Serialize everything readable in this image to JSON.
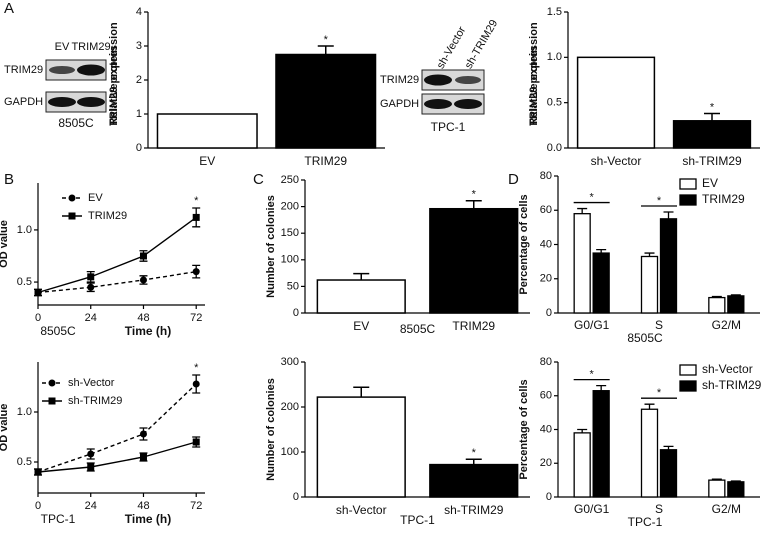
{
  "panel_labels": [
    "A",
    "B",
    "C",
    "D"
  ],
  "blots": [
    {
      "lanes": [
        "EV",
        "TRIM29"
      ],
      "rows": [
        "TRIM29",
        "GAPDH"
      ],
      "cell_line": "8505C"
    },
    {
      "lanes": [
        "sh-Vector",
        "sh-TRIM29"
      ],
      "rows": [
        "TRIM29",
        "GAPDH"
      ],
      "cell_line": "TPC-1"
    }
  ],
  "chart_data": [
    {
      "type": "bar",
      "ylabel": "TRIM29 protein\nRelative expression",
      "categories": [
        "EV",
        "TRIM29"
      ],
      "values": [
        1,
        2.75
      ],
      "errors": [
        0,
        0.25
      ],
      "colors": [
        "#ffffff",
        "#000000"
      ],
      "ylim": [
        0,
        4
      ],
      "yticks": [
        0,
        1,
        2,
        3,
        4
      ],
      "annotations": [
        "*"
      ]
    },
    {
      "type": "bar",
      "ylabel": "TRIM29 protein\nRelative expression",
      "categories": [
        "sh-Vector",
        "sh-TRIM29"
      ],
      "values": [
        1,
        0.3
      ],
      "errors": [
        0,
        0.08
      ],
      "colors": [
        "#ffffff",
        "#000000"
      ],
      "ylim": [
        0,
        1.5
      ],
      "yticks": [
        {
          "value": 0,
          "label": "0.0"
        },
        0.5,
        {
          "value": 1,
          "label": "1.0"
        },
        1.5
      ],
      "annotations": [
        "*"
      ]
    },
    {
      "type": "line",
      "ylabel": "OD value",
      "cell_line": "8505C",
      "xlabel": "Time (h)",
      "x": [
        0,
        24,
        48,
        72
      ],
      "xlim": [
        0,
        76
      ],
      "xticks": [
        0,
        24,
        48,
        72
      ],
      "ylim": [
        0.28,
        1.45
      ],
      "yticks": [
        0.5,
        {
          "value": 1,
          "label": "1.0"
        }
      ],
      "series": [
        {
          "name": "EV",
          "color": "#000000",
          "dashed": true,
          "marker": "circle",
          "values": [
            0.4,
            0.45,
            0.52,
            0.6
          ],
          "errors": [
            0.03,
            0.04,
            0.04,
            0.06
          ]
        },
        {
          "name": "TRIM29",
          "color": "#000000",
          "dashed": false,
          "marker": "square",
          "values": [
            0.4,
            0.55,
            0.75,
            1.12
          ],
          "errors": [
            0.03,
            0.05,
            0.05,
            0.09
          ]
        }
      ],
      "annotations": [
        "*"
      ]
    },
    {
      "type": "line",
      "ylabel": "OD value",
      "cell_line": "TPC-1",
      "xlabel": "Time (h)",
      "x": [
        0,
        24,
        48,
        72
      ],
      "xlim": [
        0,
        76
      ],
      "xticks": [
        0,
        24,
        48,
        72
      ],
      "ylim": [
        0.19,
        1.5
      ],
      "yticks": [
        0.5,
        {
          "value": 1,
          "label": "1.0"
        }
      ],
      "series": [
        {
          "name": "sh-Vector",
          "color": "#000000",
          "dashed": true,
          "marker": "circle",
          "values": [
            0.4,
            0.58,
            0.78,
            1.28
          ],
          "errors": [
            0.03,
            0.05,
            0.06,
            0.09
          ]
        },
        {
          "name": "sh-TRIM29",
          "color": "#000000",
          "dashed": false,
          "marker": "square",
          "values": [
            0.4,
            0.45,
            0.55,
            0.7
          ],
          "errors": [
            0.03,
            0.04,
            0.04,
            0.05
          ]
        }
      ],
      "annotations": [
        "*"
      ]
    },
    {
      "type": "bar",
      "ylabel": "Number of colonies",
      "xlabel": "8505C",
      "categories": [
        "EV",
        "TRIM29"
      ],
      "values": [
        62,
        196
      ],
      "errors": [
        12,
        15
      ],
      "colors": [
        "#ffffff",
        "#000000"
      ],
      "ylim": [
        0,
        250
      ],
      "yticks": [
        0,
        50,
        100,
        150,
        200,
        250
      ],
      "annotations": [
        "*"
      ]
    },
    {
      "type": "bar",
      "ylabel": "Number of colonies",
      "xlabel": "TPC-1",
      "categories": [
        "sh-Vector",
        "sh-TRIM29"
      ],
      "values": [
        222,
        72
      ],
      "errors": [
        22,
        12
      ],
      "colors": [
        "#ffffff",
        "#000000"
      ],
      "ylim": [
        0,
        300
      ],
      "yticks": [
        0,
        100,
        200,
        300
      ],
      "annotations": [
        "*"
      ]
    },
    {
      "type": "bar",
      "ylabel": "Percentage of cells",
      "xlabel": "8505C",
      "categories": [
        "G0/G1",
        "S",
        "G2/M"
      ],
      "ylim": [
        0,
        80
      ],
      "yticks": [
        0,
        20,
        40,
        60,
        80
      ],
      "series": [
        {
          "name": "EV",
          "color": "#ffffff",
          "values": [
            58,
            33,
            9
          ],
          "errors": [
            3,
            2,
            0.6
          ]
        },
        {
          "name": "TRIM29",
          "color": "#000000",
          "values": [
            35,
            55,
            10
          ],
          "errors": [
            2,
            4,
            0.6
          ]
        }
      ],
      "annotations": [
        "*",
        "*"
      ]
    },
    {
      "type": "bar",
      "ylabel": "Percentage of cells",
      "xlabel": "TPC-1",
      "categories": [
        "G0/G1",
        "S",
        "G2/M"
      ],
      "ylim": [
        0,
        80
      ],
      "yticks": [
        0,
        20,
        40,
        60,
        80
      ],
      "series": [
        {
          "name": "sh-Vector",
          "color": "#ffffff",
          "values": [
            38,
            52,
            10
          ],
          "errors": [
            2,
            3,
            0.6
          ]
        },
        {
          "name": "sh-TRIM29",
          "color": "#000000",
          "values": [
            63,
            28,
            9
          ],
          "errors": [
            3,
            2,
            0.5
          ]
        }
      ],
      "annotations": [
        "*",
        "*"
      ]
    }
  ]
}
